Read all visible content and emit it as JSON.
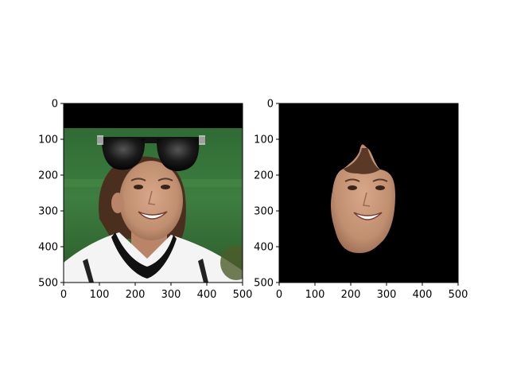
{
  "figure": {
    "panels": [
      {
        "name": "composited-photo",
        "xticks": [
          "0",
          "100",
          "200",
          "300",
          "400",
          "500"
        ],
        "yticks": [
          "0",
          "100",
          "200",
          "300",
          "400",
          "500"
        ],
        "content": "photo of smiling woman with sunglasses overlay"
      },
      {
        "name": "face-mask",
        "xticks": [
          "0",
          "100",
          "200",
          "300",
          "400",
          "500"
        ],
        "yticks": [
          "0",
          "100",
          "200",
          "300",
          "400",
          "500"
        ],
        "content": "segmented face on black background"
      }
    ],
    "colors": {
      "background_field": "#3b7a3e",
      "mask_background": "#000000",
      "skin": "#c9997a",
      "sunglasses": "#111111"
    }
  }
}
